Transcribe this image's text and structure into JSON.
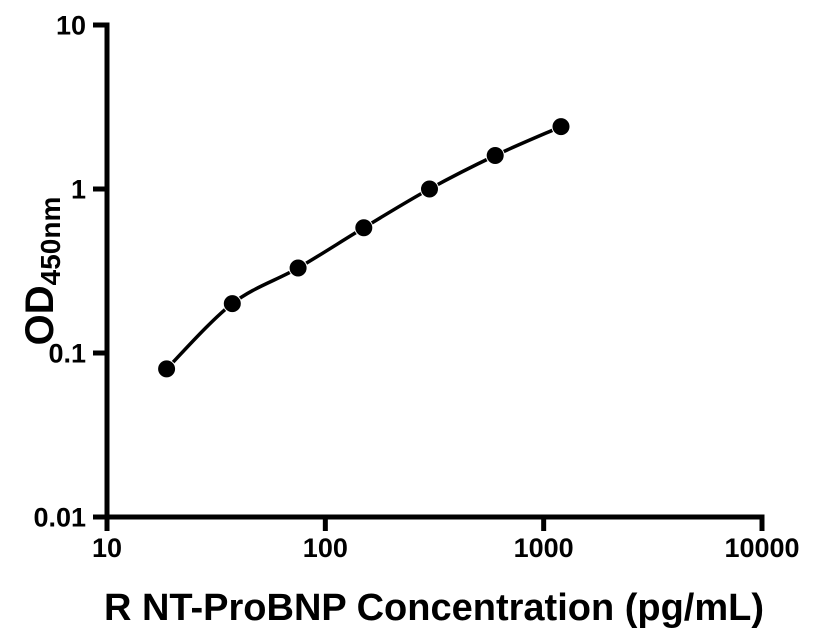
{
  "figure": {
    "background_color": "#ffffff"
  },
  "chart_data": {
    "type": "scatter",
    "title": "",
    "xlabel": "R NT-ProBNP Concentration (pg/mL)",
    "ylabel_main": "OD",
    "ylabel_sub": "450nm",
    "xscale": "log",
    "yscale": "log",
    "xlim": [
      10,
      10000
    ],
    "ylim": [
      0.01,
      10
    ],
    "grid": false,
    "x": [
      18.75,
      37.5,
      75,
      150,
      300,
      600,
      1200
    ],
    "y": [
      0.08,
      0.2,
      0.33,
      0.58,
      1.0,
      1.6,
      2.4
    ],
    "x_ticks": [
      {
        "v": 10,
        "label": "10"
      },
      {
        "v": 100,
        "label": "100"
      },
      {
        "v": 1000,
        "label": "1000"
      },
      {
        "v": 10000,
        "label": "10000"
      }
    ],
    "y_ticks": [
      {
        "v": 10,
        "label": "10"
      },
      {
        "v": 1,
        "label": "1"
      },
      {
        "v": 0.1,
        "label": "0.1"
      },
      {
        "v": 0.01,
        "label": "0.01"
      }
    ],
    "colors": {
      "axis": "#000000",
      "curve": "#000000",
      "marker": "#000000",
      "marker_outline": "#ffffff",
      "text": "#000000"
    }
  }
}
